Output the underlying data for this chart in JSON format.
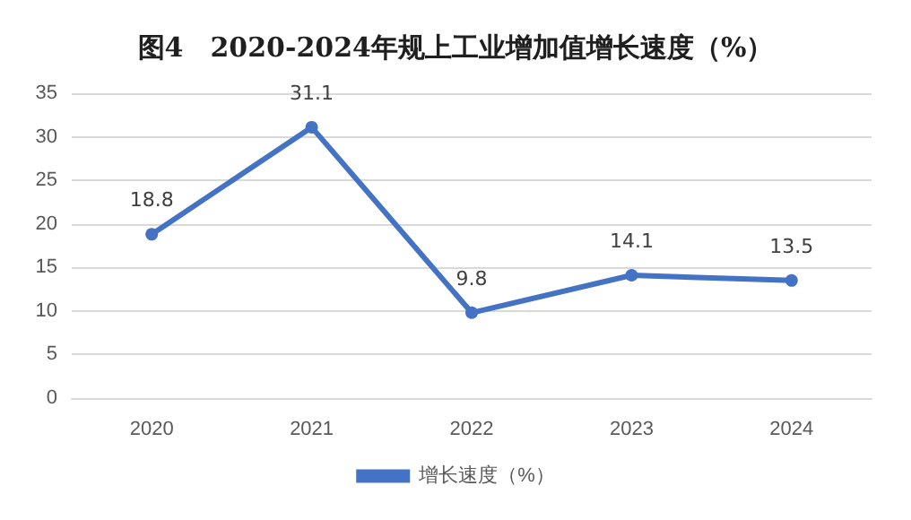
{
  "chart_data": {
    "type": "line",
    "title": "图4　2020-2024年规上工业增加值增长速度（%）",
    "categories": [
      "2020",
      "2021",
      "2022",
      "2023",
      "2024"
    ],
    "series": [
      {
        "name": "增长速度（%）",
        "color": "#4472c4",
        "values": [
          18.8,
          31.1,
          9.8,
          14.1,
          13.5
        ]
      }
    ],
    "ylim": [
      0,
      35
    ],
    "yticks": [
      0,
      5,
      10,
      15,
      20,
      25,
      30,
      35
    ],
    "grid": "y",
    "legend": "bottom",
    "marker": "circle",
    "line_style": "solid",
    "data_labels": true
  }
}
